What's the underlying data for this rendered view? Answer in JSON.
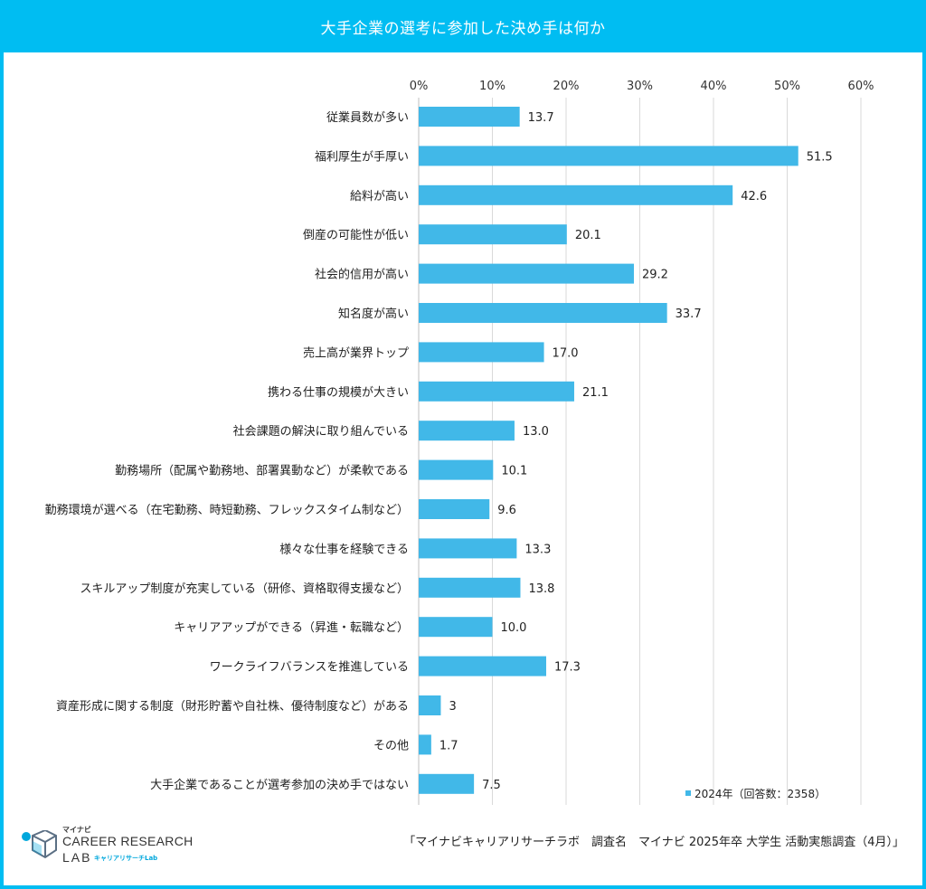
{
  "header": {
    "title": "大手企業の選考に参加した決め手は何か"
  },
  "source_text": "「マイナビキャリアリサーチラボ　調査名　マイナビ 2025年卒 大学生 活動実態調査（4月）」",
  "logo": {
    "top": "マイナビ",
    "line1": "CAREER RESEARCH",
    "line2": "LAB",
    "sub": "キャリアリサーチLab"
  },
  "colors": {
    "bar": "#41b8e8",
    "header": "#00bdf2",
    "grid": "#d9d9d9"
  },
  "chart_data": {
    "type": "bar",
    "orientation": "horizontal",
    "title": "大手企業の選考に参加した決め手は何か",
    "xlim": [
      0,
      60
    ],
    "xticks": [
      0,
      10,
      20,
      30,
      40,
      50,
      60
    ],
    "xtick_labels": [
      "0%",
      "10%",
      "20%",
      "30%",
      "40%",
      "50%",
      "60%"
    ],
    "grid": true,
    "legend_position": "bottom-right",
    "categories": [
      "従業員数が多い",
      "福利厚生が手厚い",
      "給料が高い",
      "倒産の可能性が低い",
      "社会的信用が高い",
      "知名度が高い",
      "売上高が業界トップ",
      "携わる仕事の規模が大きい",
      "社会課題の解決に取り組んでいる",
      "勤務場所（配属や勤務地、部署異動など）が柔軟である",
      "勤務環境が選べる（在宅勤務、時短勤務、フレックスタイム制など）",
      "様々な仕事を経験できる",
      "スキルアップ制度が充実している（研修、資格取得支援など）",
      "キャリアアップができる（昇進・転職など）",
      "ワークライフバランスを推進している",
      "資産形成に関する制度（財形貯蓄や自社株、優待制度など）がある",
      "その他",
      "大手企業であることが選考参加の決め手ではない"
    ],
    "series": [
      {
        "name": "2024年（回答数：2358）",
        "values": [
          13.7,
          51.5,
          42.6,
          20.1,
          29.2,
          33.7,
          17.0,
          21.1,
          13.0,
          10.1,
          9.6,
          13.3,
          13.8,
          10.0,
          17.3,
          3,
          1.7,
          7.5
        ],
        "labels": [
          "13.7",
          "51.5",
          "42.6",
          "20.1",
          "29.2",
          "33.7",
          "17.0",
          "21.1",
          "13.0",
          "10.1",
          "9.6",
          "13.3",
          "13.8",
          "10.0",
          "17.3",
          "3",
          "1.7",
          "7.5"
        ]
      }
    ]
  }
}
